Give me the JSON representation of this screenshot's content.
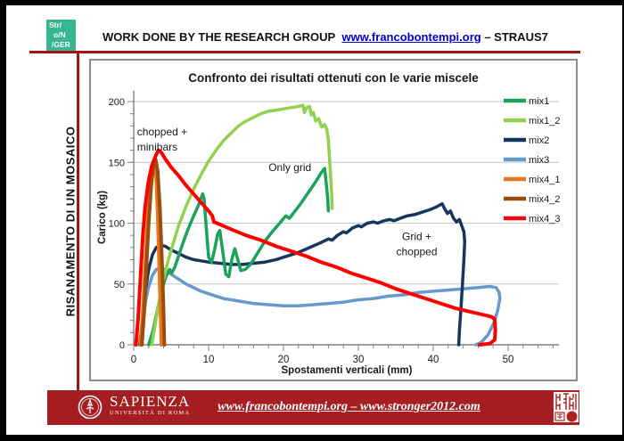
{
  "header": {
    "logo_lines": [
      "Str/",
      "o/N",
      "/GER"
    ],
    "title": "WORK DONE BY THE RESEARCH GROUP",
    "link": "www.francobontempi.org",
    "suffix": "– STRAUS7"
  },
  "sidebar": {
    "vertical_text": "RISANAMENTO DI UN MOSAICO"
  },
  "footer": {
    "university": "SAPIENZA",
    "university_sub": "UNIVERSITÀ DI ROMA",
    "link": "www.francobontempi.org – www.stronger2012.com"
  },
  "colors": {
    "logo_teal": "#35B78F",
    "line_red": "#A01414",
    "footer_red": "#A41E22",
    "link_blue": "#0000CC",
    "grid_gray": "#C6C6C6",
    "axis_gray": "#808080"
  },
  "chart_data": {
    "type": "line",
    "title": "Confronto dei risultati ottenuti con le varie miscele",
    "xlabel": "Spostamenti verticali (mm)",
    "ylabel": "Carico (kg)",
    "xlim": [
      0,
      56
    ],
    "ylim": [
      0,
      210
    ],
    "x_ticks": [
      0,
      10,
      20,
      30,
      40,
      50
    ],
    "y_ticks": [
      0,
      50,
      100,
      150,
      200
    ],
    "x_minor_step": 2,
    "y_minor_step": 10,
    "grid": "horizontal",
    "legend_position": "right",
    "draw_order": [
      3,
      2,
      0,
      1,
      4,
      5,
      6
    ],
    "annotations": [
      {
        "lines": [
          "chopped +",
          "minibars"
        ],
        "x": 0.45,
        "y": 172,
        "anchor": "start"
      },
      {
        "lines": [
          "Only grid"
        ],
        "x": 18,
        "y": 143,
        "anchor": "start"
      },
      {
        "lines": [
          "Grid +",
          "chopped"
        ],
        "x": 37.8,
        "y": 86,
        "anchor": "middle"
      }
    ],
    "series": [
      {
        "name": "mix1",
        "color": "#1CA25C",
        "width": 3.5,
        "points": [
          [
            2,
            0
          ],
          [
            2.6,
            12
          ],
          [
            3.2,
            30
          ],
          [
            3.8,
            46
          ],
          [
            4.3,
            56
          ],
          [
            4.8,
            62
          ],
          [
            5.1,
            59
          ],
          [
            5.5,
            64
          ],
          [
            6.2,
            77
          ],
          [
            7,
            91
          ],
          [
            7.8,
            103
          ],
          [
            8.6,
            114
          ],
          [
            9.2,
            124
          ],
          [
            9.4,
            120
          ],
          [
            9.7,
            95
          ],
          [
            10,
            72
          ],
          [
            10.4,
            68
          ],
          [
            10.8,
            78
          ],
          [
            11.2,
            91
          ],
          [
            11.5,
            94
          ],
          [
            11.9,
            76
          ],
          [
            12.3,
            58
          ],
          [
            12.7,
            56
          ],
          [
            13.1,
            70
          ],
          [
            13.5,
            79
          ],
          [
            13.9,
            70
          ],
          [
            14.3,
            61
          ],
          [
            14.9,
            62
          ],
          [
            15.6,
            66
          ],
          [
            16.5,
            75
          ],
          [
            17.5,
            85
          ],
          [
            18.5,
            93
          ],
          [
            19.5,
            100
          ],
          [
            20.3,
            106
          ],
          [
            20.8,
            104
          ],
          [
            21.3,
            108
          ],
          [
            22.3,
            116
          ],
          [
            23.3,
            125
          ],
          [
            24.3,
            134
          ],
          [
            25.1,
            142
          ],
          [
            25.5,
            145
          ],
          [
            25.7,
            133
          ],
          [
            25.9,
            121
          ],
          [
            26,
            110
          ]
        ]
      },
      {
        "name": "mix1_2",
        "color": "#92D050",
        "width": 3.5,
        "points": [
          [
            2.4,
            0
          ],
          [
            2.8,
            14
          ],
          [
            3.3,
            33
          ],
          [
            3.9,
            52
          ],
          [
            4.5,
            67
          ],
          [
            5.2,
            82
          ],
          [
            6,
            98
          ],
          [
            7,
            114
          ],
          [
            8,
            128
          ],
          [
            9,
            140
          ],
          [
            10,
            151
          ],
          [
            11,
            160
          ],
          [
            12,
            168
          ],
          [
            13,
            174
          ],
          [
            14,
            180
          ],
          [
            15,
            184
          ],
          [
            16,
            187
          ],
          [
            17,
            190
          ],
          [
            18,
            192
          ],
          [
            19,
            193
          ],
          [
            20,
            194
          ],
          [
            21,
            195
          ],
          [
            22,
            196
          ],
          [
            22.6,
            197
          ],
          [
            22.8,
            191
          ],
          [
            23.1,
            195
          ],
          [
            23.5,
            196
          ],
          [
            23.7,
            189
          ],
          [
            24,
            191
          ],
          [
            24.3,
            184
          ],
          [
            24.7,
            186
          ],
          [
            25.1,
            179
          ],
          [
            25.5,
            181
          ],
          [
            25.8,
            177
          ],
          [
            26,
            168
          ],
          [
            26.2,
            148
          ],
          [
            26.4,
            128
          ],
          [
            26.5,
            112
          ]
        ]
      },
      {
        "name": "mix2",
        "color": "#17365D",
        "width": 3.5,
        "points": [
          [
            0.8,
            0
          ],
          [
            1.2,
            22
          ],
          [
            1.6,
            46
          ],
          [
            2,
            62
          ],
          [
            2.5,
            74
          ],
          [
            3,
            80
          ],
          [
            3.5,
            82
          ],
          [
            4.2,
            81
          ],
          [
            5,
            78
          ],
          [
            6,
            75
          ],
          [
            7,
            72
          ],
          [
            8,
            70
          ],
          [
            9,
            69
          ],
          [
            10,
            68
          ],
          [
            11.5,
            67
          ],
          [
            13,
            66
          ],
          [
            14.5,
            66
          ],
          [
            16,
            67
          ],
          [
            17.5,
            68
          ],
          [
            19,
            70
          ],
          [
            20.5,
            73
          ],
          [
            22,
            76
          ],
          [
            23.5,
            80
          ],
          [
            25,
            84
          ],
          [
            26,
            87
          ],
          [
            26.5,
            86
          ],
          [
            27.2,
            90
          ],
          [
            28,
            93
          ],
          [
            28.4,
            92
          ],
          [
            29.2,
            96
          ],
          [
            30,
            98
          ],
          [
            30.4,
            97
          ],
          [
            31.2,
            100
          ],
          [
            32,
            101
          ],
          [
            32.6,
            100
          ],
          [
            33.4,
            102
          ],
          [
            34.2,
            103
          ],
          [
            34.8,
            102
          ],
          [
            35.6,
            104
          ],
          [
            36.5,
            106
          ],
          [
            37.5,
            107
          ],
          [
            38.5,
            109
          ],
          [
            39.5,
            111
          ],
          [
            40.3,
            113
          ],
          [
            40.9,
            115
          ],
          [
            41.2,
            116
          ],
          [
            41.5,
            112
          ],
          [
            41.9,
            108
          ],
          [
            42.3,
            110
          ],
          [
            42.7,
            104
          ],
          [
            43.1,
            101
          ],
          [
            43.5,
            103
          ],
          [
            43.8,
            98
          ],
          [
            44.1,
            93
          ],
          [
            44.2,
            85
          ],
          [
            44.1,
            70
          ],
          [
            43.9,
            50
          ],
          [
            43.7,
            30
          ],
          [
            43.5,
            12
          ],
          [
            43.4,
            0
          ]
        ]
      },
      {
        "name": "mix3",
        "color": "#6699CC",
        "width": 3.5,
        "points": [
          [
            0.8,
            0
          ],
          [
            1.2,
            16
          ],
          [
            1.6,
            36
          ],
          [
            2,
            48
          ],
          [
            2.5,
            57
          ],
          [
            3,
            62
          ],
          [
            3.6,
            63
          ],
          [
            4.2,
            62
          ],
          [
            5,
            58
          ],
          [
            6,
            54
          ],
          [
            7,
            50
          ],
          [
            8,
            47
          ],
          [
            9,
            44
          ],
          [
            10,
            42
          ],
          [
            12,
            38
          ],
          [
            14,
            36
          ],
          [
            16,
            34
          ],
          [
            18,
            33
          ],
          [
            20,
            32
          ],
          [
            22,
            32
          ],
          [
            24,
            33
          ],
          [
            26,
            34
          ],
          [
            28,
            35
          ],
          [
            30,
            37
          ],
          [
            32,
            38
          ],
          [
            34,
            40
          ],
          [
            36,
            41
          ],
          [
            38,
            43
          ],
          [
            40,
            44
          ],
          [
            42,
            45
          ],
          [
            44,
            46
          ],
          [
            46,
            47
          ],
          [
            47.6,
            48
          ],
          [
            48.4,
            47
          ],
          [
            48.8,
            43
          ],
          [
            48.9,
            38
          ],
          [
            48.6,
            28
          ],
          [
            48.1,
            18
          ],
          [
            47.3,
            8
          ],
          [
            46.4,
            2
          ],
          [
            45.7,
            0
          ]
        ]
      },
      {
        "name": "mix4_1",
        "color": "#E8761B",
        "width": 4,
        "points": [
          [
            0.9,
            0
          ],
          [
            1.2,
            25
          ],
          [
            1.5,
            60
          ],
          [
            1.8,
            95
          ],
          [
            2.1,
            122
          ],
          [
            2.4,
            140
          ],
          [
            2.7,
            147
          ],
          [
            3,
            138
          ],
          [
            3.2,
            108
          ],
          [
            3.4,
            65
          ],
          [
            3.6,
            25
          ],
          [
            3.7,
            0
          ]
        ]
      },
      {
        "name": "mix4_2",
        "color": "#9A4E0E",
        "width": 4,
        "points": [
          [
            1.1,
            0
          ],
          [
            1.4,
            28
          ],
          [
            1.7,
            65
          ],
          [
            2,
            100
          ],
          [
            2.3,
            128
          ],
          [
            2.6,
            146
          ],
          [
            2.9,
            153
          ],
          [
            3.2,
            143
          ],
          [
            3.5,
            112
          ],
          [
            3.8,
            65
          ],
          [
            4,
            25
          ],
          [
            4.1,
            0
          ]
        ]
      },
      {
        "name": "mix4_3",
        "color": "#FE0000",
        "width": 4,
        "points": [
          [
            0.3,
            0
          ],
          [
            0.6,
            22
          ],
          [
            0.9,
            55
          ],
          [
            1.2,
            88
          ],
          [
            1.5,
            112
          ],
          [
            1.9,
            132
          ],
          [
            2.4,
            147
          ],
          [
            2.9,
            155
          ],
          [
            3.3,
            160
          ],
          [
            3.7,
            158
          ],
          [
            4.2,
            153
          ],
          [
            5,
            146
          ],
          [
            6,
            139
          ],
          [
            7,
            131
          ],
          [
            8,
            124
          ],
          [
            9,
            117
          ],
          [
            10,
            110
          ],
          [
            10.5,
            106
          ],
          [
            10.7,
            101
          ],
          [
            11.5,
            99
          ],
          [
            13,
            95
          ],
          [
            15,
            90
          ],
          [
            17,
            86
          ],
          [
            19,
            81
          ],
          [
            21,
            77
          ],
          [
            23,
            73
          ],
          [
            25,
            68
          ],
          [
            27,
            64
          ],
          [
            29,
            59
          ],
          [
            31,
            55
          ],
          [
            33,
            51
          ],
          [
            35,
            46
          ],
          [
            37,
            42
          ],
          [
            39,
            38
          ],
          [
            41,
            34
          ],
          [
            43,
            30
          ],
          [
            45,
            27
          ],
          [
            46.5,
            25
          ],
          [
            47.8,
            23
          ],
          [
            48.2,
            21
          ],
          [
            48.3,
            12
          ],
          [
            48.2,
            4
          ],
          [
            47.6,
            1
          ],
          [
            46.2,
            0
          ]
        ]
      }
    ]
  }
}
